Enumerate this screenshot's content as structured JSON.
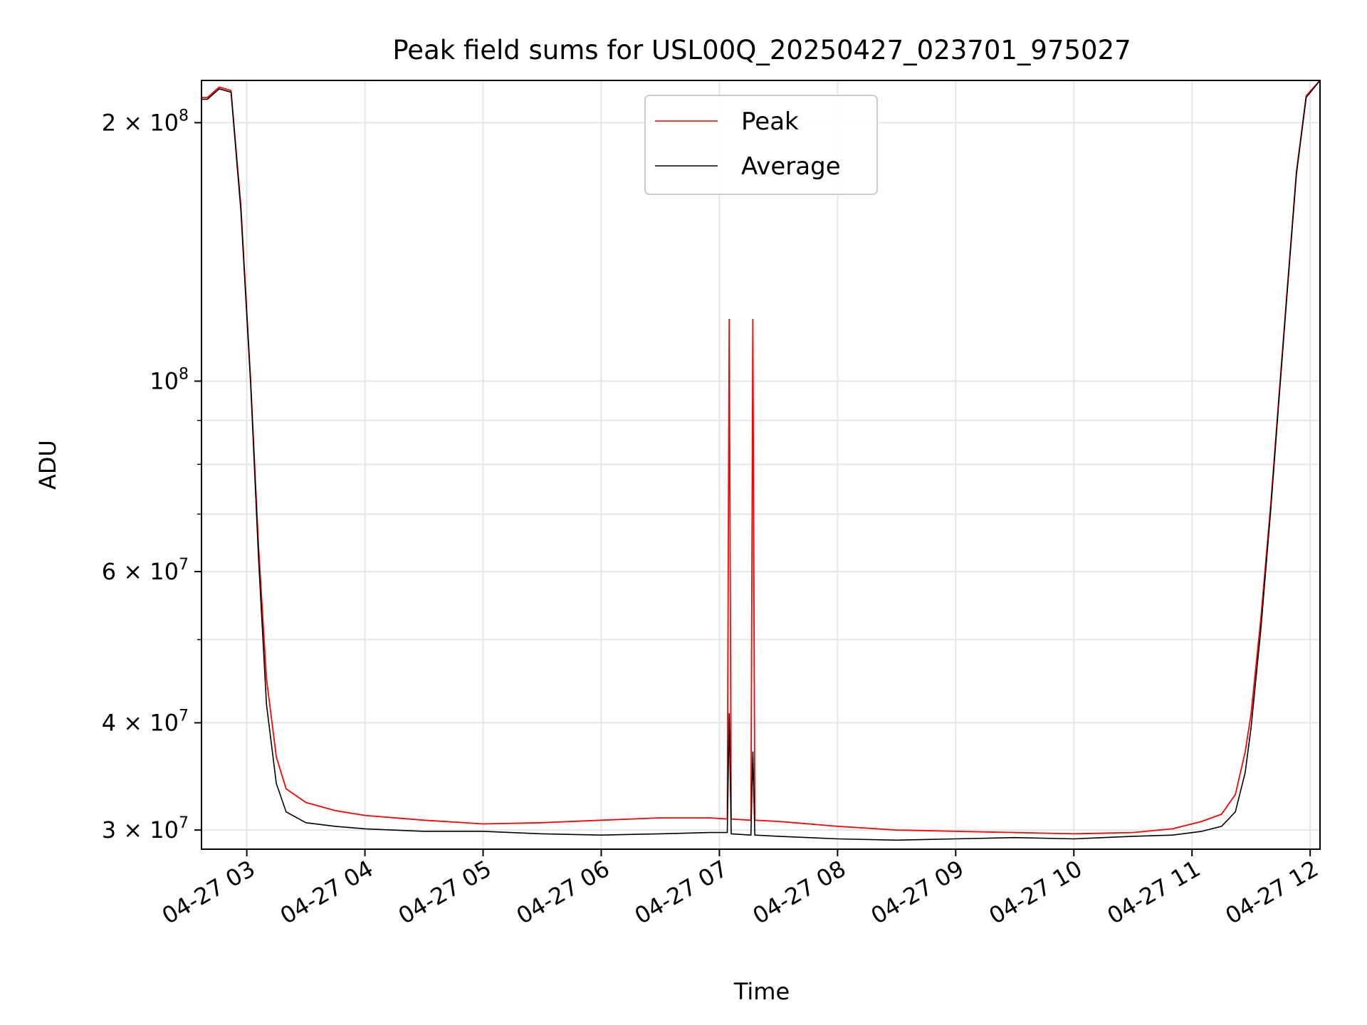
{
  "chart_data": {
    "type": "line",
    "title": "Peak field sums for USL00Q_20250427_023701_975027",
    "xlabel": "Time",
    "ylabel": "ADU",
    "yscale": "log",
    "xlim": [
      "2025-04-27 02:37",
      "2025-04-27 12:05"
    ],
    "ylim": [
      28500000,
      224000000
    ],
    "xticks": [
      {
        "x": "2025-04-27 03:00",
        "label": "04-27 03"
      },
      {
        "x": "2025-04-27 04:00",
        "label": "04-27 04"
      },
      {
        "x": "2025-04-27 05:00",
        "label": "04-27 05"
      },
      {
        "x": "2025-04-27 06:00",
        "label": "04-27 06"
      },
      {
        "x": "2025-04-27 07:00",
        "label": "04-27 07"
      },
      {
        "x": "2025-04-27 08:00",
        "label": "04-27 08"
      },
      {
        "x": "2025-04-27 09:00",
        "label": "04-27 09"
      },
      {
        "x": "2025-04-27 10:00",
        "label": "04-27 10"
      },
      {
        "x": "2025-04-27 11:00",
        "label": "04-27 11"
      },
      {
        "x": "2025-04-27 12:00",
        "label": "04-27 12"
      }
    ],
    "yticks_major": [
      {
        "y": 30000000,
        "mant": "3",
        "exp": "7"
      },
      {
        "y": 40000000,
        "mant": "4",
        "exp": "7"
      },
      {
        "y": 60000000,
        "mant": "6",
        "exp": "7"
      },
      {
        "y": 100000000,
        "mant": "",
        "exp": "8"
      },
      {
        "y": 200000000,
        "mant": "2",
        "exp": "8"
      }
    ],
    "yticks_minor": [
      50000000,
      70000000,
      80000000,
      90000000
    ],
    "grid": true,
    "legend": "top-center",
    "series": [
      {
        "name": "Peak",
        "color": "#ff0000",
        "x": [
          "2025-04-27 02:37",
          "2025-04-27 02:40",
          "2025-04-27 02:46",
          "2025-04-27 02:52",
          "2025-04-27 02:57",
          "2025-04-27 03:02",
          "2025-04-27 03:06",
          "2025-04-27 03:10",
          "2025-04-27 03:15",
          "2025-04-27 03:20",
          "2025-04-27 03:30",
          "2025-04-27 03:45",
          "2025-04-27 04:00",
          "2025-04-27 04:30",
          "2025-04-27 05:00",
          "2025-04-27 05:30",
          "2025-04-27 06:00",
          "2025-04-27 06:30",
          "2025-04-27 06:55",
          "2025-04-27 07:04",
          "2025-04-27 07:05",
          "2025-04-27 07:06",
          "2025-04-27 07:16",
          "2025-04-27 07:17",
          "2025-04-27 07:18",
          "2025-04-27 07:30",
          "2025-04-27 08:00",
          "2025-04-27 08:30",
          "2025-04-27 09:00",
          "2025-04-27 09:30",
          "2025-04-27 10:00",
          "2025-04-27 10:30",
          "2025-04-27 10:50",
          "2025-04-27 11:05",
          "2025-04-27 11:15",
          "2025-04-27 11:22",
          "2025-04-27 11:27",
          "2025-04-27 11:30",
          "2025-04-27 11:35",
          "2025-04-27 11:40",
          "2025-04-27 11:44",
          "2025-04-27 11:48",
          "2025-04-27 11:53",
          "2025-04-27 11:58",
          "2025-04-27 12:05"
        ],
        "values": [
          214000000,
          214000000,
          220000000,
          218000000,
          160000000,
          100000000,
          64000000,
          45000000,
          36500000,
          33500000,
          32300000,
          31600000,
          31200000,
          30800000,
          30500000,
          30600000,
          30800000,
          31000000,
          31000000,
          30900000,
          118000000,
          30900000,
          30800000,
          118000000,
          30800000,
          30700000,
          30300000,
          30000000,
          29900000,
          29800000,
          29700000,
          29800000,
          30100000,
          30700000,
          31300000,
          33000000,
          37000000,
          41000000,
          53000000,
          72000000,
          95000000,
          125000000,
          175000000,
          215000000,
          224000000
        ]
      },
      {
        "name": "Average",
        "color": "#000000",
        "x": [
          "2025-04-27 02:37",
          "2025-04-27 02:40",
          "2025-04-27 02:46",
          "2025-04-27 02:52",
          "2025-04-27 02:57",
          "2025-04-27 03:02",
          "2025-04-27 03:06",
          "2025-04-27 03:10",
          "2025-04-27 03:15",
          "2025-04-27 03:20",
          "2025-04-27 03:30",
          "2025-04-27 03:45",
          "2025-04-27 04:00",
          "2025-04-27 04:30",
          "2025-04-27 05:00",
          "2025-04-27 05:30",
          "2025-04-27 06:00",
          "2025-04-27 06:30",
          "2025-04-27 06:55",
          "2025-04-27 07:04",
          "2025-04-27 07:05",
          "2025-04-27 07:06",
          "2025-04-27 07:16",
          "2025-04-27 07:17",
          "2025-04-27 07:18",
          "2025-04-27 07:30",
          "2025-04-27 08:00",
          "2025-04-27 08:30",
          "2025-04-27 09:00",
          "2025-04-27 09:30",
          "2025-04-27 10:00",
          "2025-04-27 10:30",
          "2025-04-27 10:50",
          "2025-04-27 11:05",
          "2025-04-27 11:15",
          "2025-04-27 11:22",
          "2025-04-27 11:27",
          "2025-04-27 11:30",
          "2025-04-27 11:35",
          "2025-04-27 11:40",
          "2025-04-27 11:44",
          "2025-04-27 11:48",
          "2025-04-27 11:53",
          "2025-04-27 11:58",
          "2025-04-27 12:05"
        ],
        "values": [
          213000000,
          213000000,
          219000000,
          217000000,
          158000000,
          99000000,
          62000000,
          42000000,
          34000000,
          31500000,
          30600000,
          30300000,
          30100000,
          29900000,
          29900000,
          29700000,
          29600000,
          29700000,
          29800000,
          29800000,
          41000000,
          29700000,
          29600000,
          37000000,
          29600000,
          29500000,
          29300000,
          29200000,
          29300000,
          29400000,
          29300000,
          29500000,
          29600000,
          29900000,
          30300000,
          31500000,
          35000000,
          39500000,
          51500000,
          71000000,
          94000000,
          124000000,
          174000000,
          214000000,
          224000000
        ]
      }
    ]
  }
}
